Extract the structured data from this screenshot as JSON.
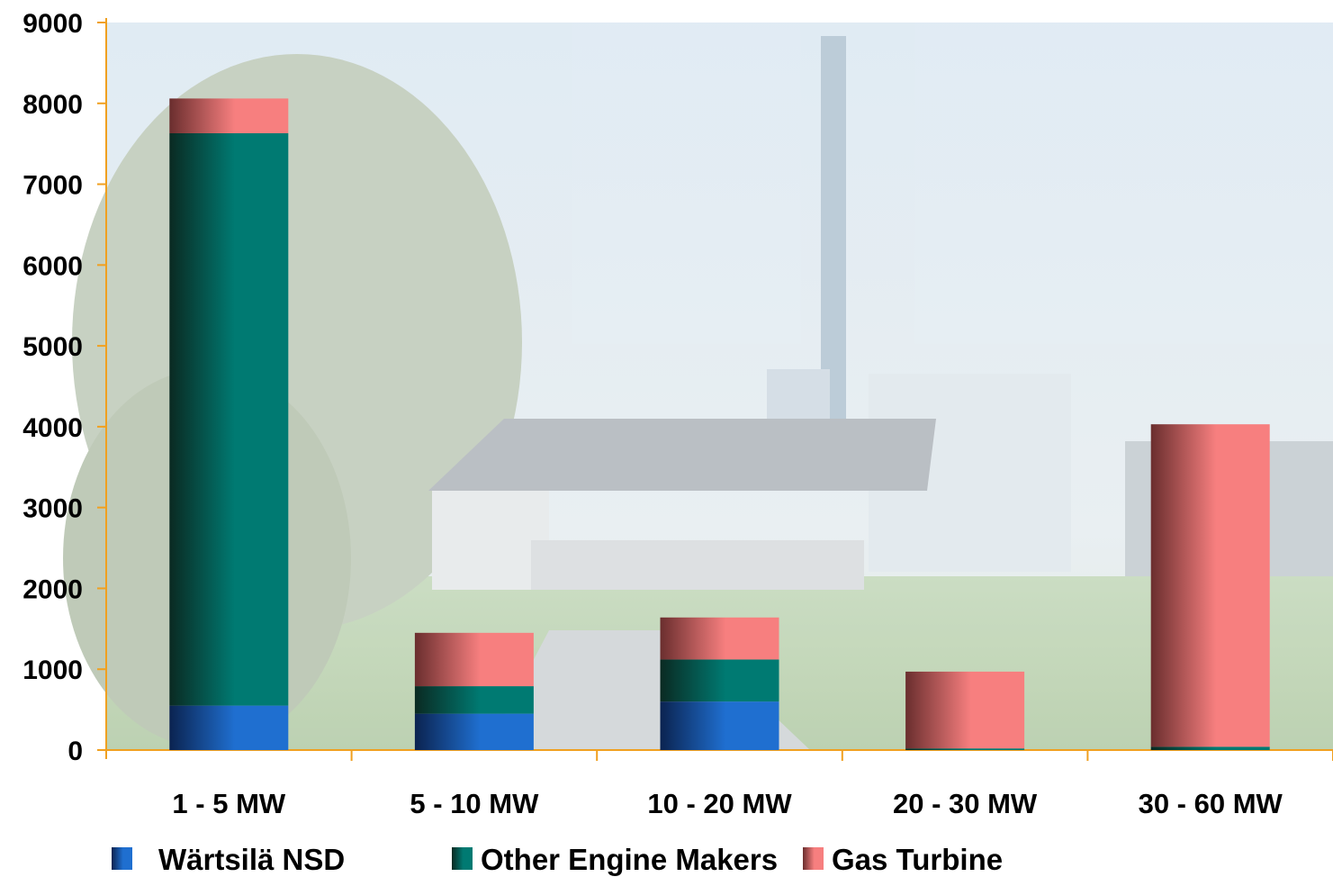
{
  "chart_data": {
    "type": "bar",
    "stacked": true,
    "categories": [
      "1 - 5 MW",
      "5 - 10 MW",
      "10 - 20 MW",
      "20 - 30 MW",
      "30 - 60 MW"
    ],
    "series": [
      {
        "name": "Wärtsilä NSD",
        "values": [
          550,
          450,
          600,
          0,
          0
        ],
        "color": "#1f6fd0",
        "color_dark": "#0b2350"
      },
      {
        "name": "Other Engine Makers",
        "values": [
          7080,
          340,
          520,
          20,
          40
        ],
        "color": "#007a72",
        "color_dark": "#0a2a22"
      },
      {
        "name": "Gas Turbine",
        "values": [
          430,
          660,
          520,
          950,
          3990
        ],
        "color": "#f77f7f",
        "color_dark": "#6a2e2e"
      }
    ],
    "ylim": [
      0,
      9000
    ],
    "yticks": [
      "0",
      "1000",
      "2000",
      "3000",
      "4000",
      "5000",
      "6000",
      "7000",
      "8000",
      "9000"
    ],
    "title": "",
    "xlabel": "",
    "ylabel": "",
    "legend_position": "bottom",
    "grid": false,
    "axis_color": "#f0a020",
    "background": "faded photograph of a power plant with tree, barn, chimney and storage tanks"
  }
}
